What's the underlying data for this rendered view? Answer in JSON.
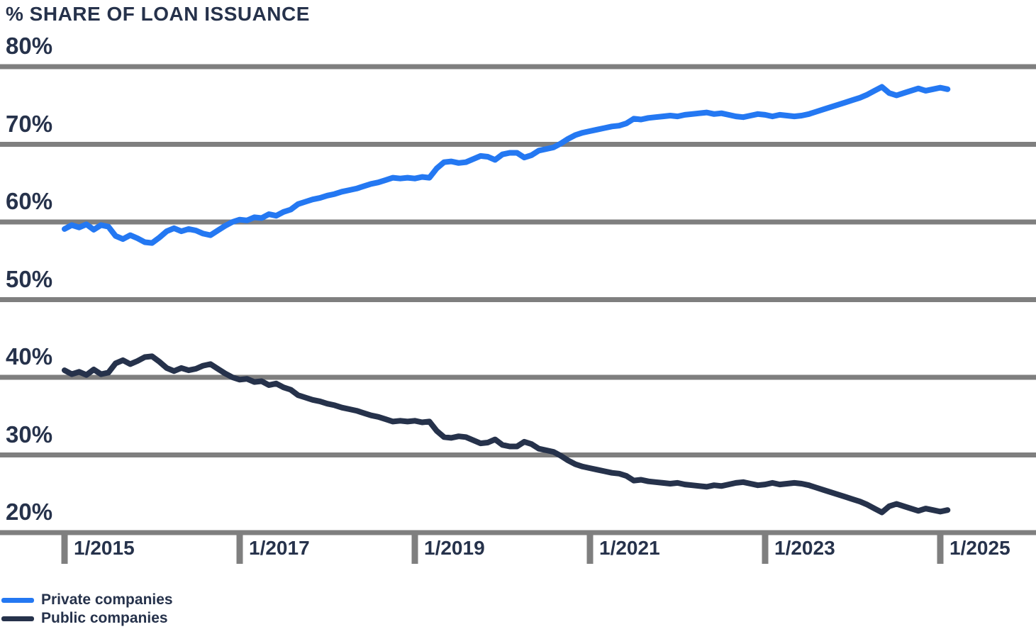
{
  "colors": {
    "background": "#FFFFFF",
    "grid": "#7F7F7F",
    "text": "#26324B",
    "private_line": "#2478F2",
    "public_line": "#26324B"
  },
  "chart_data": {
    "type": "line",
    "title": "% SHARE OF LOAN ISSUANCE",
    "xlabel": "",
    "ylabel": "",
    "ylim": [
      20,
      80
    ],
    "grid": "horizontal",
    "legend_position": "bottom-left",
    "y_ticks": [
      "80%",
      "70%",
      "60%",
      "50%",
      "40%",
      "30%",
      "20%"
    ],
    "x_ticks": [
      "1/2015",
      "1/2017",
      "1/2019",
      "1/2021",
      "1/2023",
      "1/2025"
    ],
    "x_tick_positions": [
      0,
      24,
      48,
      72,
      96,
      120
    ],
    "x": [
      "2015-01",
      "2015-02",
      "2015-03",
      "2015-04",
      "2015-05",
      "2015-06",
      "2015-07",
      "2015-08",
      "2015-09",
      "2015-10",
      "2015-11",
      "2015-12",
      "2016-01",
      "2016-02",
      "2016-03",
      "2016-04",
      "2016-05",
      "2016-06",
      "2016-07",
      "2016-08",
      "2016-09",
      "2016-10",
      "2016-11",
      "2016-12",
      "2017-01",
      "2017-02",
      "2017-03",
      "2017-04",
      "2017-05",
      "2017-06",
      "2017-07",
      "2017-08",
      "2017-09",
      "2017-10",
      "2017-11",
      "2017-12",
      "2018-01",
      "2018-02",
      "2018-03",
      "2018-04",
      "2018-05",
      "2018-06",
      "2018-07",
      "2018-08",
      "2018-09",
      "2018-10",
      "2018-11",
      "2018-12",
      "2019-01",
      "2019-02",
      "2019-03",
      "2019-04",
      "2019-05",
      "2019-06",
      "2019-07",
      "2019-08",
      "2019-09",
      "2019-10",
      "2019-11",
      "2019-12",
      "2020-01",
      "2020-02",
      "2020-03",
      "2020-04",
      "2020-05",
      "2020-06",
      "2020-07",
      "2020-08",
      "2020-09",
      "2020-10",
      "2020-11",
      "2020-12",
      "2021-01",
      "2021-02",
      "2021-03",
      "2021-04",
      "2021-05",
      "2021-06",
      "2021-07",
      "2021-08",
      "2021-09",
      "2021-10",
      "2021-11",
      "2021-12",
      "2022-01",
      "2022-02",
      "2022-03",
      "2022-04",
      "2022-05",
      "2022-06",
      "2022-07",
      "2022-08",
      "2022-09",
      "2022-10",
      "2022-11",
      "2022-12",
      "2023-01",
      "2023-02",
      "2023-03",
      "2023-04",
      "2023-05",
      "2023-06",
      "2023-07",
      "2023-08",
      "2023-09",
      "2023-10",
      "2023-11",
      "2023-12",
      "2024-01",
      "2024-02",
      "2024-03",
      "2024-04",
      "2024-05",
      "2024-06",
      "2024-07",
      "2024-08",
      "2024-09",
      "2024-10",
      "2024-11",
      "2024-12",
      "2025-01",
      "2025-02"
    ],
    "series": [
      {
        "name": "Private companies",
        "color": "#2478F2",
        "values": [
          59.1,
          59.6,
          59.3,
          59.7,
          59.0,
          59.6,
          59.4,
          58.2,
          57.8,
          58.3,
          57.9,
          57.4,
          57.3,
          58.0,
          58.8,
          59.2,
          58.8,
          59.1,
          58.9,
          58.5,
          58.3,
          58.9,
          59.5,
          60.0,
          60.3,
          60.2,
          60.6,
          60.5,
          61.0,
          60.8,
          61.3,
          61.6,
          62.3,
          62.6,
          62.9,
          63.1,
          63.4,
          63.6,
          63.9,
          64.1,
          64.3,
          64.6,
          64.9,
          65.1,
          65.4,
          65.7,
          65.6,
          65.7,
          65.6,
          65.8,
          65.7,
          66.9,
          67.7,
          67.8,
          67.6,
          67.7,
          68.1,
          68.5,
          68.4,
          68.0,
          68.7,
          68.9,
          68.9,
          68.3,
          68.6,
          69.2,
          69.4,
          69.6,
          70.1,
          70.7,
          71.2,
          71.5,
          71.7,
          71.9,
          72.1,
          72.3,
          72.4,
          72.7,
          73.3,
          73.2,
          73.4,
          73.5,
          73.6,
          73.7,
          73.6,
          73.8,
          73.9,
          74.0,
          74.1,
          73.9,
          74.0,
          73.8,
          73.6,
          73.5,
          73.7,
          73.9,
          73.8,
          73.6,
          73.8,
          73.7,
          73.6,
          73.7,
          73.9,
          74.2,
          74.5,
          74.8,
          75.1,
          75.4,
          75.7,
          76.0,
          76.4,
          76.9,
          77.4,
          76.6,
          76.3,
          76.6,
          76.9,
          77.2,
          76.9,
          77.1,
          77.3,
          77.1
        ]
      },
      {
        "name": "Public companies",
        "color": "#26324B",
        "values": [
          40.9,
          40.4,
          40.7,
          40.3,
          41.0,
          40.4,
          40.6,
          41.8,
          42.2,
          41.7,
          42.1,
          42.6,
          42.7,
          42.0,
          41.2,
          40.8,
          41.2,
          40.9,
          41.1,
          41.5,
          41.7,
          41.1,
          40.5,
          40.0,
          39.7,
          39.8,
          39.4,
          39.5,
          39.0,
          39.2,
          38.7,
          38.4,
          37.7,
          37.4,
          37.1,
          36.9,
          36.6,
          36.4,
          36.1,
          35.9,
          35.7,
          35.4,
          35.1,
          34.9,
          34.6,
          34.3,
          34.4,
          34.3,
          34.4,
          34.2,
          34.3,
          33.1,
          32.3,
          32.2,
          32.4,
          32.3,
          31.9,
          31.5,
          31.6,
          32.0,
          31.3,
          31.1,
          31.1,
          31.7,
          31.4,
          30.8,
          30.6,
          30.4,
          29.9,
          29.3,
          28.8,
          28.5,
          28.3,
          28.1,
          27.9,
          27.7,
          27.6,
          27.3,
          26.7,
          26.8,
          26.6,
          26.5,
          26.4,
          26.3,
          26.4,
          26.2,
          26.1,
          26.0,
          25.9,
          26.1,
          26.0,
          26.2,
          26.4,
          26.5,
          26.3,
          26.1,
          26.2,
          26.4,
          26.2,
          26.3,
          26.4,
          26.3,
          26.1,
          25.8,
          25.5,
          25.2,
          24.9,
          24.6,
          24.3,
          24.0,
          23.6,
          23.1,
          22.6,
          23.4,
          23.7,
          23.4,
          23.1,
          22.8,
          23.1,
          22.9,
          22.7,
          22.9
        ]
      }
    ]
  }
}
